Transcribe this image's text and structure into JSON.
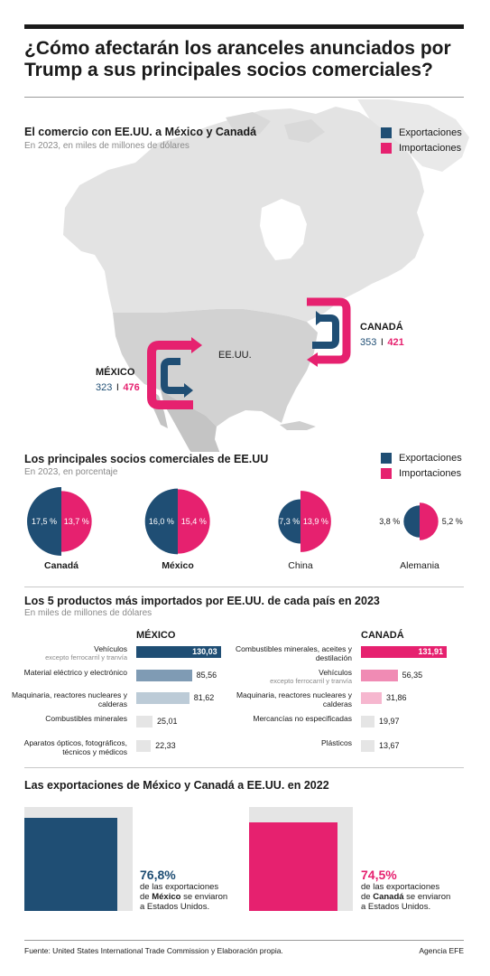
{
  "header": {
    "title": "¿Cómo afectarán los aranceles anunciados por Trump a sus principales socios comerciales?"
  },
  "legend": {
    "exports": "Exportaciones",
    "imports": "Importaciones"
  },
  "colors": {
    "exports": "#1f4e74",
    "imports": "#e6216f",
    "light_blue_1": "#7f9bb4",
    "light_blue_2": "#bccbd7",
    "light_pink_1": "#f08bb4",
    "light_pink_2": "#f6b7cf",
    "gray_bar": "#e5e5e5"
  },
  "map_section": {
    "title": "El comercio con EE.UU. a México y Canadá",
    "subtitle": "En 2023, en miles de millones de dólares",
    "usa_label": "EE.UU.",
    "mexico": {
      "name": "MÉXICO",
      "exports": "323",
      "sep": "I",
      "imports": "476"
    },
    "canada": {
      "name": "CANADÁ",
      "exports": "353",
      "sep": "I",
      "imports": "421"
    }
  },
  "partners_section": {
    "title": "Los principales socios comerciales de EE.UU",
    "subtitle": "En 2023, en porcentaje"
  },
  "products_section": {
    "title": "Los 5 productos más importados por EE.UU. de cada país en 2023",
    "subtitle": "En miles de millones de dólares",
    "mexico_head": "MÉXICO",
    "canada_head": "CANADÁ"
  },
  "exports_section": {
    "title": "Las exportaciones de México y Canadá a EE.UU. en 2022",
    "mexico": {
      "pct": "76,8%",
      "line1": "de las exportaciones",
      "line2_pre": "de ",
      "line2_bold": "México",
      "line2_post": " se enviaron",
      "line3": "a Estados Unidos."
    },
    "canada": {
      "pct": "74,5%",
      "line1": "de las exportaciones",
      "line2_pre": "de ",
      "line2_bold": "Canadá",
      "line2_post": " se enviaron",
      "line3": "a Estados Unidos."
    }
  },
  "footer": {
    "source": "Fuente: United States International Trade Commission y Elaboración propia.",
    "agency": "Agencia EFE"
  },
  "chart_data": [
    {
      "type": "bar",
      "title": "El comercio con EE.UU. a México y Canadá",
      "categories": [
        "MÉXICO",
        "CANADÁ"
      ],
      "series": [
        {
          "name": "Exportaciones",
          "values": [
            323,
            353
          ]
        },
        {
          "name": "Importaciones",
          "values": [
            476,
            421
          ]
        }
      ]
    },
    {
      "type": "pie",
      "title": "Los principales socios comerciales de EE.UU",
      "countries": [
        {
          "name": "Canadá",
          "bold": true,
          "exports": 17.5,
          "imports": 13.7,
          "exports_label": "17,5 %",
          "imports_label": "13,7 %"
        },
        {
          "name": "México",
          "bold": true,
          "exports": 16.0,
          "imports": 15.4,
          "exports_label": "16,0 %",
          "imports_label": "15,4 %"
        },
        {
          "name": "China",
          "bold": false,
          "exports": 7.3,
          "imports": 13.9,
          "exports_label": "7,3 %",
          "imports_label": "13,9 %"
        },
        {
          "name": "Alemania",
          "bold": false,
          "exports": 3.8,
          "imports": 5.2,
          "exports_label": "3,8 %",
          "imports_label": "5,2 %"
        }
      ]
    },
    {
      "type": "bar",
      "title": "MÉXICO",
      "categories": [
        {
          "label": "Vehículos",
          "note": "excepto ferrocarril y tranvía"
        },
        {
          "label": "Material eléctrico y electrónico",
          "note": ""
        },
        {
          "label": "Maquinaria, reactores nucleares y calderas",
          "note": ""
        },
        {
          "label": "Combustibles minerales",
          "note": ""
        },
        {
          "label": "Aparatos ópticos, fotográficos, técnicos y médicos",
          "note": ""
        }
      ],
      "values": [
        130.03,
        85.56,
        81.62,
        25.01,
        22.33
      ],
      "value_labels": [
        "130,03",
        "85,56",
        "81,62",
        "25,01",
        "22,33"
      ]
    },
    {
      "type": "bar",
      "title": "CANADÁ",
      "categories": [
        {
          "label": "Combustibles minerales, aceites y destilación",
          "note": ""
        },
        {
          "label": "Vehículos",
          "note": "excepto ferrocarril y tranvía"
        },
        {
          "label": "Maquinaria, reactores nucleares y calderas",
          "note": ""
        },
        {
          "label": "Mercancías no especificadas",
          "note": ""
        },
        {
          "label": "Plásticos",
          "note": ""
        }
      ],
      "values": [
        131.91,
        56.35,
        31.86,
        19.97,
        13.67
      ],
      "value_labels": [
        "131,91",
        "56,35",
        "31,86",
        "19,97",
        "13,67"
      ]
    },
    {
      "type": "bar",
      "title": "Las exportaciones de México y Canadá a EE.UU. en 2022",
      "categories": [
        "México",
        "Canadá"
      ],
      "values": [
        76.8,
        74.5
      ]
    }
  ]
}
